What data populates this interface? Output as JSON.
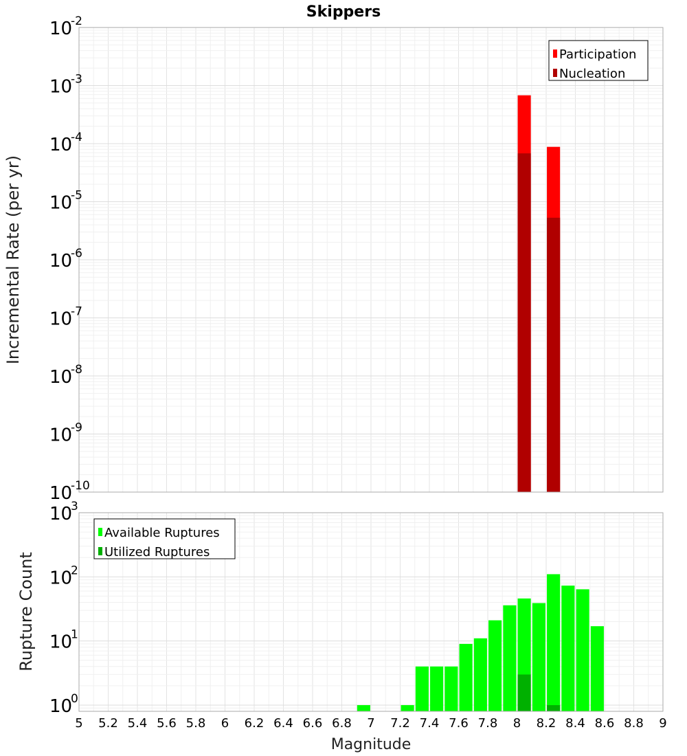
{
  "chart_data": [
    {
      "type": "bar",
      "title": "Skippers",
      "xlabel": "",
      "ylabel": "Incremental Rate (per yr)",
      "xlim": [
        5,
        9
      ],
      "ylim": [
        1e-10,
        0.01
      ],
      "yscale": "log",
      "bar_width": 0.09,
      "y_tick_exponents": [
        -10,
        -9,
        -8,
        -7,
        -6,
        -5,
        -4,
        -3,
        -2
      ],
      "legend_position": "top-right",
      "grid": true,
      "series": [
        {
          "name": "Participation",
          "color": "#ff0000",
          "points": [
            {
              "x": 8.05,
              "y": 0.00068
            },
            {
              "x": 8.25,
              "y": 8.8e-05
            }
          ]
        },
        {
          "name": "Nucleation",
          "color": "#b00000",
          "points": [
            {
              "x": 8.05,
              "y": 6.8e-05
            },
            {
              "x": 8.25,
              "y": 5.3e-06
            }
          ]
        }
      ]
    },
    {
      "type": "bar",
      "title": "",
      "xlabel": "Magnitude",
      "ylabel": "Rupture Count",
      "xlim": [
        5,
        9
      ],
      "ylim": [
        0.8,
        1000
      ],
      "yscale": "log",
      "bar_width": 0.09,
      "y_tick_exponents": [
        0,
        1,
        2,
        3
      ],
      "x_ticks": [
        "5",
        "5.2",
        "5.4",
        "5.6",
        "5.8",
        "6",
        "6.2",
        "6.4",
        "6.6",
        "6.8",
        "7",
        "7.2",
        "7.4",
        "7.6",
        "7.8",
        "8",
        "8.2",
        "8.4",
        "8.6",
        "8.8",
        "9"
      ],
      "legend_position": "top-left",
      "grid": true,
      "series": [
        {
          "name": "Available Ruptures",
          "color": "#00ff00",
          "points": [
            {
              "x": 6.95,
              "y": 1
            },
            {
              "x": 7.25,
              "y": 1
            },
            {
              "x": 7.35,
              "y": 4
            },
            {
              "x": 7.45,
              "y": 4
            },
            {
              "x": 7.55,
              "y": 4
            },
            {
              "x": 7.65,
              "y": 9
            },
            {
              "x": 7.75,
              "y": 11
            },
            {
              "x": 7.85,
              "y": 21
            },
            {
              "x": 7.95,
              "y": 36
            },
            {
              "x": 8.05,
              "y": 46
            },
            {
              "x": 8.15,
              "y": 39
            },
            {
              "x": 8.25,
              "y": 110
            },
            {
              "x": 8.35,
              "y": 73
            },
            {
              "x": 8.45,
              "y": 64
            },
            {
              "x": 8.55,
              "y": 17
            }
          ]
        },
        {
          "name": "Utilized Ruptures",
          "color": "#00b000",
          "points": [
            {
              "x": 8.05,
              "y": 3
            },
            {
              "x": 8.25,
              "y": 1
            }
          ]
        }
      ]
    }
  ]
}
